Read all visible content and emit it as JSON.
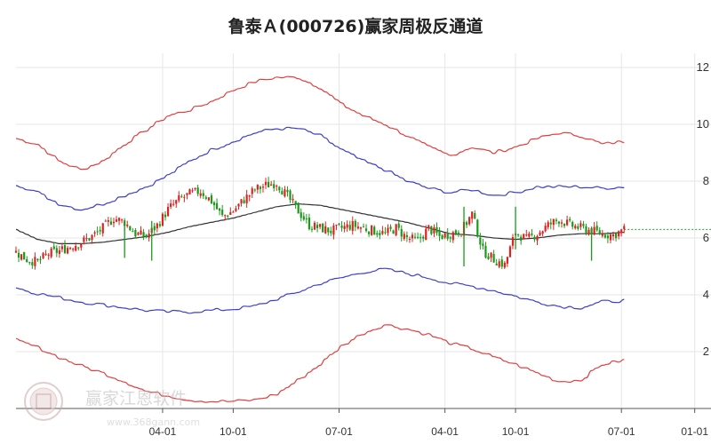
{
  "chart_data": {
    "type": "candlestick",
    "title": "鲁泰Ａ(000726)赢家周极反通道",
    "xlabel": "",
    "ylabel": "",
    "ylim": [
      0,
      12.5
    ],
    "y_ticks": [
      2,
      4,
      6,
      8,
      10,
      12
    ],
    "x_ticks": [
      {
        "label": "04-01",
        "x": 54
      },
      {
        "label": "10-01",
        "x": 80
      },
      {
        "label": "07-01",
        "x": 119
      },
      {
        "label": "04-01",
        "x": 158
      },
      {
        "label": "10-01",
        "x": 184
      },
      {
        "label": "07-01",
        "x": 223
      },
      {
        "label": "01-01",
        "x": 250
      }
    ],
    "x_range": [
      0,
      256
    ],
    "grid": true,
    "last_close": 6.3,
    "colors": {
      "up": "#dd2222",
      "down": "#1a9a1a",
      "outer_band": "#e43c3c",
      "inner_band": "#3d3dcc",
      "ma": "#333333",
      "projection": "#2aa02a",
      "grid": "#e6e6e6"
    },
    "series": [
      {
        "role": "outer-upper",
        "x": [
          0,
          8,
          16,
          24,
          32,
          40,
          48,
          56,
          64,
          72,
          80,
          88,
          96,
          104,
          112,
          120,
          128,
          136,
          144,
          152,
          160,
          168,
          176,
          184,
          192,
          200,
          208,
          216,
          224
        ],
        "values": [
          9.5,
          9.3,
          8.7,
          8.4,
          8.7,
          9.3,
          9.8,
          10.3,
          10.5,
          10.8,
          11.2,
          11.5,
          11.65,
          11.65,
          11.3,
          10.7,
          10.3,
          10.0,
          9.6,
          9.2,
          8.9,
          9.2,
          9.0,
          9.2,
          9.5,
          9.7,
          9.6,
          9.3,
          9.4
        ]
      },
      {
        "role": "inner-upper",
        "x": [
          0,
          8,
          16,
          24,
          32,
          40,
          48,
          56,
          64,
          72,
          80,
          88,
          96,
          104,
          112,
          120,
          128,
          136,
          144,
          152,
          160,
          168,
          176,
          184,
          192,
          200,
          208,
          216,
          224
        ],
        "values": [
          7.9,
          7.6,
          7.2,
          7.0,
          7.2,
          7.5,
          7.8,
          8.2,
          8.7,
          9.1,
          9.4,
          9.7,
          9.85,
          9.85,
          9.6,
          9.1,
          8.7,
          8.4,
          8.0,
          7.75,
          7.6,
          7.7,
          7.5,
          7.6,
          7.8,
          7.8,
          7.8,
          7.75,
          7.8
        ]
      },
      {
        "role": "ma",
        "x": [
          0,
          8,
          16,
          24,
          32,
          40,
          48,
          56,
          64,
          72,
          80,
          88,
          96,
          104,
          112,
          120,
          128,
          136,
          144,
          152,
          160,
          168,
          176,
          184,
          192,
          200,
          208,
          216,
          224
        ],
        "values": [
          6.3,
          5.95,
          5.8,
          5.8,
          5.85,
          5.95,
          6.05,
          6.2,
          6.4,
          6.55,
          6.7,
          6.9,
          7.1,
          7.2,
          7.15,
          7.0,
          6.85,
          6.7,
          6.55,
          6.35,
          6.15,
          6.1,
          6.0,
          5.95,
          6.0,
          6.1,
          6.15,
          6.15,
          6.2
        ]
      },
      {
        "role": "inner-lower",
        "x": [
          0,
          8,
          16,
          24,
          32,
          40,
          48,
          56,
          64,
          72,
          80,
          88,
          96,
          104,
          112,
          120,
          128,
          136,
          144,
          152,
          160,
          168,
          176,
          184,
          192,
          200,
          208,
          216,
          224
        ],
        "values": [
          4.25,
          4.05,
          3.9,
          3.75,
          3.65,
          3.55,
          3.45,
          3.4,
          3.4,
          3.45,
          3.5,
          3.6,
          3.85,
          4.1,
          4.4,
          4.6,
          4.8,
          4.9,
          4.75,
          4.6,
          4.4,
          4.3,
          4.15,
          3.95,
          3.75,
          3.6,
          3.55,
          3.75,
          3.8
        ]
      },
      {
        "role": "outer-lower",
        "x": [
          0,
          8,
          16,
          24,
          32,
          40,
          48,
          56,
          64,
          72,
          80,
          88,
          96,
          104,
          112,
          120,
          128,
          136,
          144,
          152,
          160,
          168,
          176,
          184,
          192,
          200,
          208,
          216,
          224
        ],
        "values": [
          2.4,
          2.15,
          1.8,
          1.5,
          1.25,
          0.95,
          0.6,
          0.45,
          0.3,
          0.25,
          0.25,
          0.3,
          0.5,
          1.0,
          1.55,
          2.2,
          2.65,
          2.95,
          2.8,
          2.6,
          2.3,
          2.1,
          1.8,
          1.55,
          1.25,
          0.95,
          1.0,
          1.55,
          1.7
        ]
      }
    ],
    "candles_anchor_x": [
      0,
      4,
      8,
      12,
      16,
      20,
      24,
      28,
      32,
      36,
      40,
      44,
      48,
      52,
      56,
      60,
      64,
      68,
      72,
      76,
      80,
      84,
      88,
      92,
      96,
      100,
      104,
      108,
      112,
      116,
      120,
      124,
      128,
      132,
      136,
      140,
      144,
      148,
      152,
      156,
      160,
      164,
      168,
      172,
      176,
      180,
      184,
      188,
      192,
      196,
      200,
      204,
      208,
      212,
      216,
      220,
      224
    ],
    "candles_anchor_close": [
      5.5,
      5.25,
      5.15,
      5.45,
      5.55,
      5.7,
      5.85,
      6.05,
      6.35,
      6.7,
      6.55,
      6.15,
      6.05,
      6.45,
      7.0,
      7.35,
      7.55,
      7.65,
      7.3,
      6.75,
      6.95,
      7.35,
      7.7,
      7.85,
      7.95,
      7.45,
      6.95,
      6.45,
      6.35,
      6.25,
      6.35,
      6.45,
      6.35,
      6.25,
      6.15,
      6.35,
      6.0,
      5.9,
      6.35,
      6.05,
      6.15,
      6.25,
      6.85,
      5.55,
      5.25,
      5.05,
      6.2,
      5.95,
      6.15,
      6.45,
      6.65,
      6.45,
      6.35,
      6.25,
      6.15,
      6.1,
      6.3
    ],
    "projection": {
      "from_x": 224,
      "to_x": 256,
      "value": 6.3
    }
  }
}
